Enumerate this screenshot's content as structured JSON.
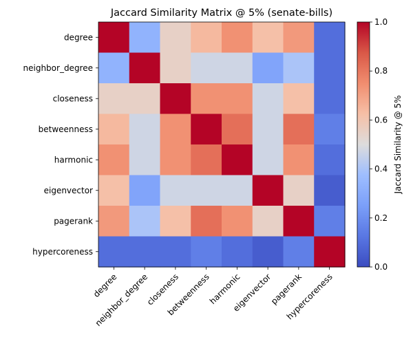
{
  "chart_data": {
    "type": "heatmap",
    "title": "Jaccard Similarity Matrix @ 5% (senate-bills)",
    "row_labels": [
      "degree",
      "neighbor_degree",
      "closeness",
      "betweenness",
      "harmonic",
      "eigenvector",
      "pagerank",
      "hypercoreness"
    ],
    "col_labels": [
      "degree",
      "neighbor_degree",
      "closeness",
      "betweenness",
      "harmonic",
      "eigenvector",
      "pagerank",
      "hypercoreness"
    ],
    "values": [
      [
        1.0,
        0.33,
        0.55,
        0.64,
        0.74,
        0.62,
        0.72,
        0.1
      ],
      [
        0.33,
        1.0,
        0.55,
        0.47,
        0.47,
        0.27,
        0.4,
        0.1
      ],
      [
        0.55,
        0.55,
        1.0,
        0.74,
        0.74,
        0.47,
        0.62,
        0.1
      ],
      [
        0.64,
        0.47,
        0.74,
        1.0,
        0.82,
        0.47,
        0.82,
        0.15
      ],
      [
        0.74,
        0.47,
        0.74,
        0.82,
        1.0,
        0.47,
        0.74,
        0.1
      ],
      [
        0.62,
        0.27,
        0.47,
        0.47,
        0.47,
        1.0,
        0.55,
        0.05
      ],
      [
        0.72,
        0.4,
        0.62,
        0.82,
        0.74,
        0.55,
        1.0,
        0.15
      ],
      [
        0.1,
        0.1,
        0.1,
        0.15,
        0.1,
        0.05,
        0.15,
        1.0
      ]
    ],
    "colormap": "coolwarm",
    "vmin": 0.0,
    "vmax": 1.0,
    "colorbar": {
      "label": "Jaccard Similarity @ 5%",
      "ticks": [
        0.0,
        0.2,
        0.4,
        0.6,
        0.8,
        1.0
      ],
      "tick_labels": [
        "0.0",
        "0.2",
        "0.4",
        "0.6",
        "0.8",
        "1.0"
      ]
    }
  }
}
